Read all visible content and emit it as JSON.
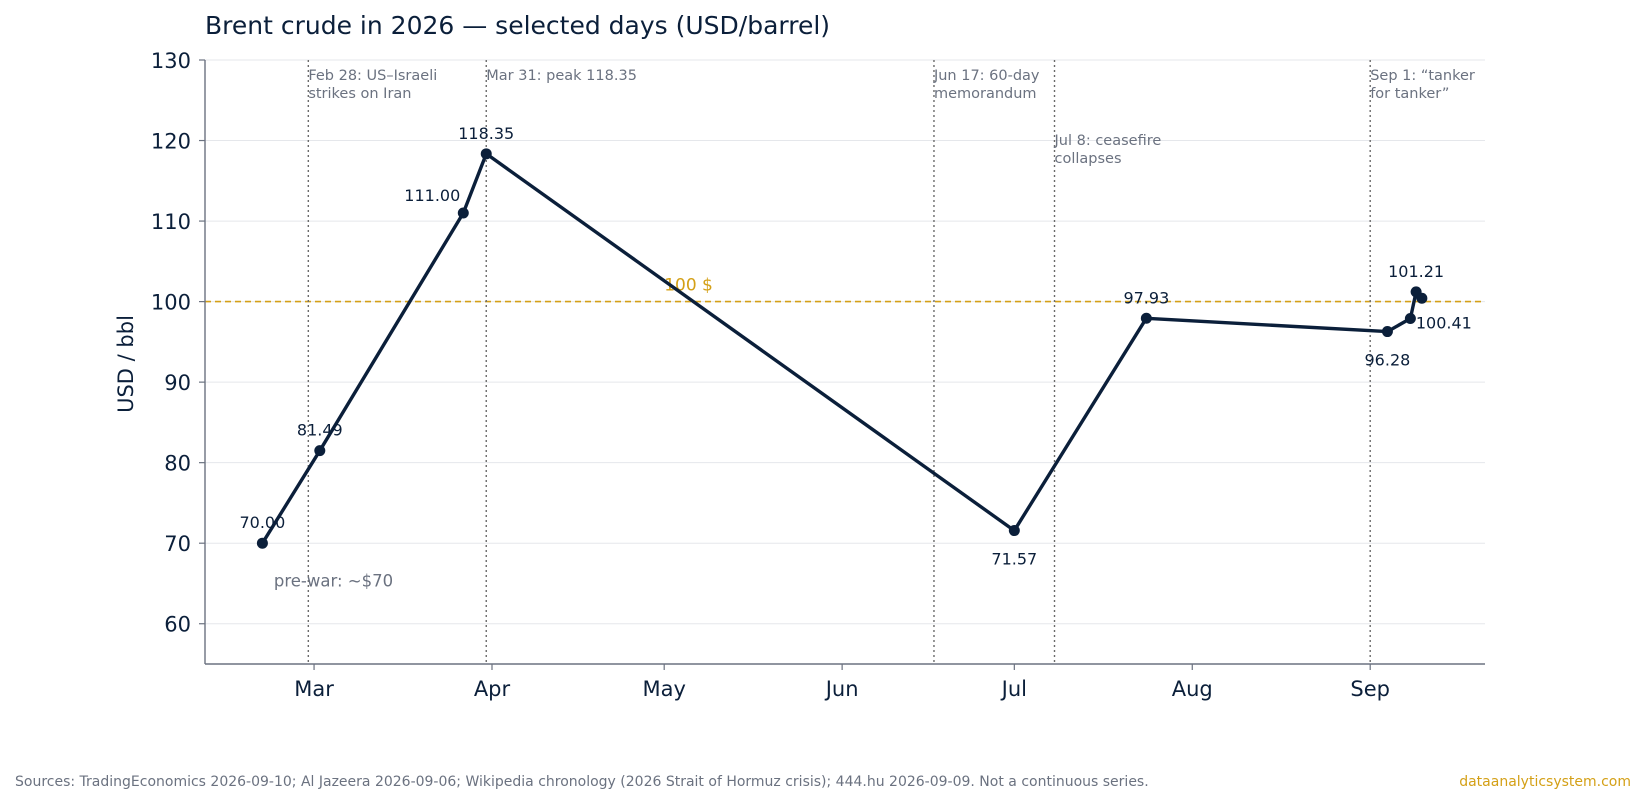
{
  "chart_data": {
    "type": "line",
    "title": "Brent crude in 2026 — selected days (USD/barrel)",
    "ylabel": "USD / bbl",
    "xlabel": "",
    "ylim": [
      55,
      130
    ],
    "xlim": [
      "2026-02-10",
      "2026-09-21"
    ],
    "yticks": [
      60,
      70,
      80,
      90,
      100,
      110,
      120,
      130
    ],
    "xticks": [
      {
        "date": "2026-03-01",
        "label": "Mar"
      },
      {
        "date": "2026-04-01",
        "label": "Apr"
      },
      {
        "date": "2026-05-01",
        "label": "May"
      },
      {
        "date": "2026-06-01",
        "label": "Jun"
      },
      {
        "date": "2026-07-01",
        "label": "Jul"
      },
      {
        "date": "2026-08-01",
        "label": "Aug"
      },
      {
        "date": "2026-09-01",
        "label": "Sep"
      }
    ],
    "grid": "horizontal",
    "series": [
      {
        "color": "#0b1f3a",
        "points": [
          {
            "date": "2026-02-20",
            "value": 70.0,
            "label": "70.00",
            "label_pos": "above"
          },
          {
            "date": "2026-03-02",
            "value": 81.49,
            "label": "81.49",
            "label_pos": "above"
          },
          {
            "date": "2026-03-27",
            "value": 111.0,
            "label": "111.00",
            "label_pos": "left"
          },
          {
            "date": "2026-03-31",
            "value": 118.35,
            "label": "118.35",
            "label_pos": "above"
          },
          {
            "date": "2026-07-01",
            "value": 71.57,
            "label": "71.57",
            "label_pos": "below"
          },
          {
            "date": "2026-07-24",
            "value": 97.93,
            "label": "97.93",
            "label_pos": "above"
          },
          {
            "date": "2026-09-04",
            "value": 96.28,
            "label": "96.28",
            "label_pos": "below"
          },
          {
            "date": "2026-09-08",
            "value": 97.9,
            "label": "",
            "label_pos": "none"
          },
          {
            "date": "2026-09-09",
            "value": 101.21,
            "label": "101.21",
            "label_pos": "above"
          },
          {
            "date": "2026-09-10",
            "value": 100.41,
            "label": "100.41",
            "label_pos": "right"
          }
        ]
      }
    ],
    "reference_line": {
      "value": 100,
      "label": "100 $",
      "color": "#d4a017"
    },
    "pre_war_note": {
      "text": "pre-war: ~$70",
      "date": "2026-02-22",
      "value": 64.6
    },
    "events": [
      {
        "date": "2026-02-28",
        "lines": [
          "Feb 28: US–Israeli",
          "strikes on Iran"
        ],
        "level": 0
      },
      {
        "date": "2026-03-31",
        "lines": [
          "Mar 31: peak 118.35"
        ],
        "level": 0
      },
      {
        "date": "2026-06-17",
        "lines": [
          "Jun 17: 60-day",
          "memorandum"
        ],
        "level": 0
      },
      {
        "date": "2026-07-08",
        "lines": [
          "Jul 8: ceasefire",
          "collapses"
        ],
        "level": 1
      },
      {
        "date": "2026-09-01",
        "lines": [
          "Sep 1: “tanker",
          "for tanker”"
        ],
        "level": 0
      }
    ],
    "colors": {
      "line": "#0b1f3a",
      "event_line": "#6b6b6b",
      "event_text": "#6b7280",
      "grid": "#e5e7eb",
      "axis": "#6b7280",
      "text": "#0b1f3a"
    }
  },
  "footer": {
    "source": "Sources: TradingEconomics 2026-09-10; Al Jazeera 2026-09-06; Wikipedia chronology (2026 Strait of Hormuz crisis); 444.hu 2026-09-09. Not a continuous series.",
    "brand": "dataanalyticsystem.com"
  }
}
